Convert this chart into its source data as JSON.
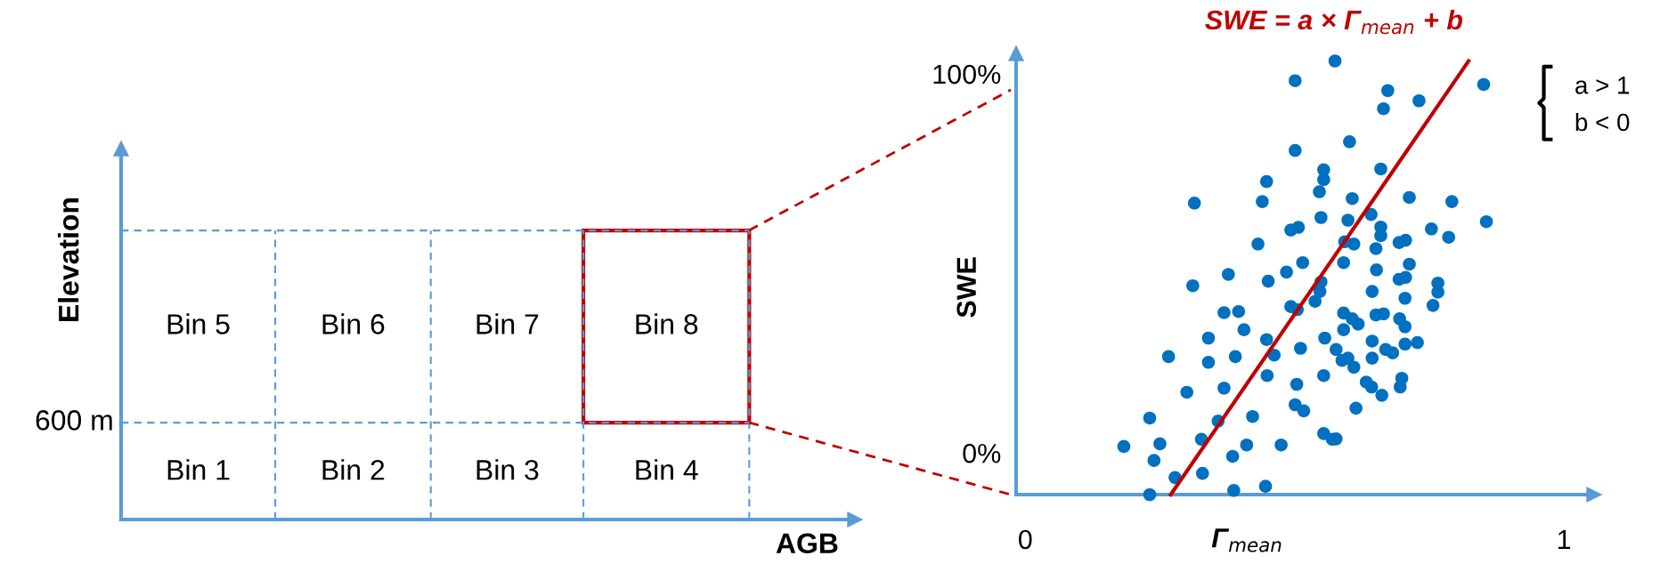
{
  "chart_data": [
    {
      "type": "other",
      "xlabel": "AGB",
      "ylabel": "Elevation",
      "annotations": [
        "Bin 1",
        "Bin 2",
        "Bin 3",
        "Bin 4",
        "Bin 5",
        "Bin 6",
        "Bin 7",
        "Bin 8",
        "600 m"
      ]
    },
    {
      "type": "scatter",
      "title": "SWE = a × Γ$_{mean}$ + b",
      "xlabel": "Γ$_{mean}$",
      "ylabel": "SWE",
      "xlim": [
        -0.017,
        1.056
      ],
      "ylim": [
        -11,
        105.4
      ],
      "xticks": [
        0,
        1
      ],
      "yticks": [
        {
          "value": 0,
          "label": "0%"
        },
        {
          "value": 100,
          "label": "100%"
        }
      ],
      "annotations": [
        "a > 1",
        "b < 0"
      ],
      "series": [
        {
          "color": "#0070c0",
          "marker": "circle",
          "x": [
            0.575,
            0.501,
            0.501,
            0.554,
            0.554,
            0.448,
            0.314,
            0.44,
            0.546,
            0.549,
            0.493,
            0.507,
            0.432,
            0.515,
            0.485,
            0.377,
            0.451,
            0.311,
            0.549,
            0.547,
            0.538,
            0.493,
            0.505,
            0.369,
            0.396,
            0.406,
            0.34,
            0.448,
            0.556,
            0.511,
            0.462,
            0.266,
            0.34,
            0.39,
            0.449,
            0.554,
            0.504,
            0.369,
            0.3,
            0.501,
            0.517,
            0.231,
            0.358,
            0.422,
            0.554,
            0.57,
            0.327,
            0.183,
            0.25,
            0.411,
            0.475,
            0.239,
            0.385,
            0.278,
            0.329,
            0.231,
            0.387,
            0.446,
            0.673,
            0.665,
            0.731,
            0.851,
            0.602,
            0.66,
            0.607,
            0.713,
            0.792,
            0.856,
            0.599,
            0.642,
            0.66,
            0.66,
            0.754,
            0.786,
            0.694,
            0.706,
            0.61,
            0.593,
            0.651,
            0.591,
            0.652,
            0.713,
            0.694,
            0.706,
            0.766,
            0.766,
            0.757,
            0.644,
            0.705,
            0.591,
            0.651,
            0.665,
            0.607,
            0.618,
            0.591,
            0.695,
            0.705,
            0.644,
            0.705,
            0.728,
            0.669,
            0.682,
            0.577,
            0.599,
            0.588,
            0.61,
            0.644,
            0.633,
            0.643,
            0.662,
            0.699,
            0.696,
            0.614,
            0.577
          ],
          "values": [
            103.4,
            98.2,
            79.8,
            74.7,
            72.1,
            71.6,
            65.9,
            66.3,
            68.9,
            62.1,
            58.8,
            59.5,
            55.1,
            50.2,
            47.7,
            47.1,
            45.3,
            44.1,
            45.1,
            42.6,
            40.0,
            38.6,
            37.8,
            37.0,
            37.3,
            32.5,
            30.3,
            29.9,
            30.3,
            27.6,
            25.8,
            25.4,
            23.9,
            25.4,
            20.4,
            20.4,
            18.1,
            17.1,
            16.0,
            12.7,
            11.1,
            9.2,
            8.4,
            9.6,
            5.1,
            3.6,
            3.6,
            1.7,
            2.4,
            2.1,
            2.1,
            -2.0,
            -0.9,
            -6.5,
            -5.4,
            -11.0,
            -9.9,
            -8.8,
            95.6,
            90.8,
            92.9,
            97.2,
            82.1,
            74.9,
            67.1,
            67.4,
            66.3,
            61.0,
            61.4,
            62.9,
            59.6,
            57.3,
            59.1,
            56.9,
            55.5,
            56.1,
            55.1,
            55.7,
            53.9,
            50.2,
            48.3,
            49.8,
            45.8,
            46.3,
            44.8,
            42.4,
            38.9,
            42.6,
            40.8,
            36.9,
            36.4,
            36.7,
            35.4,
            34.0,
            32.5,
            35.4,
            33.3,
            29.5,
            28.7,
            29.1,
            27.3,
            26.4,
            27.3,
            25.0,
            24.4,
            22.6,
            25.0,
            18.7,
            17.4,
            15.2,
            19.7,
            17.4,
            11.8,
            3.7
          ]
        },
        {
          "type": "line",
          "color": "#c00000",
          "x": [
            0.27,
            0.823
          ],
          "values": [
            -11.0,
            103.4
          ]
        }
      ]
    }
  ]
}
